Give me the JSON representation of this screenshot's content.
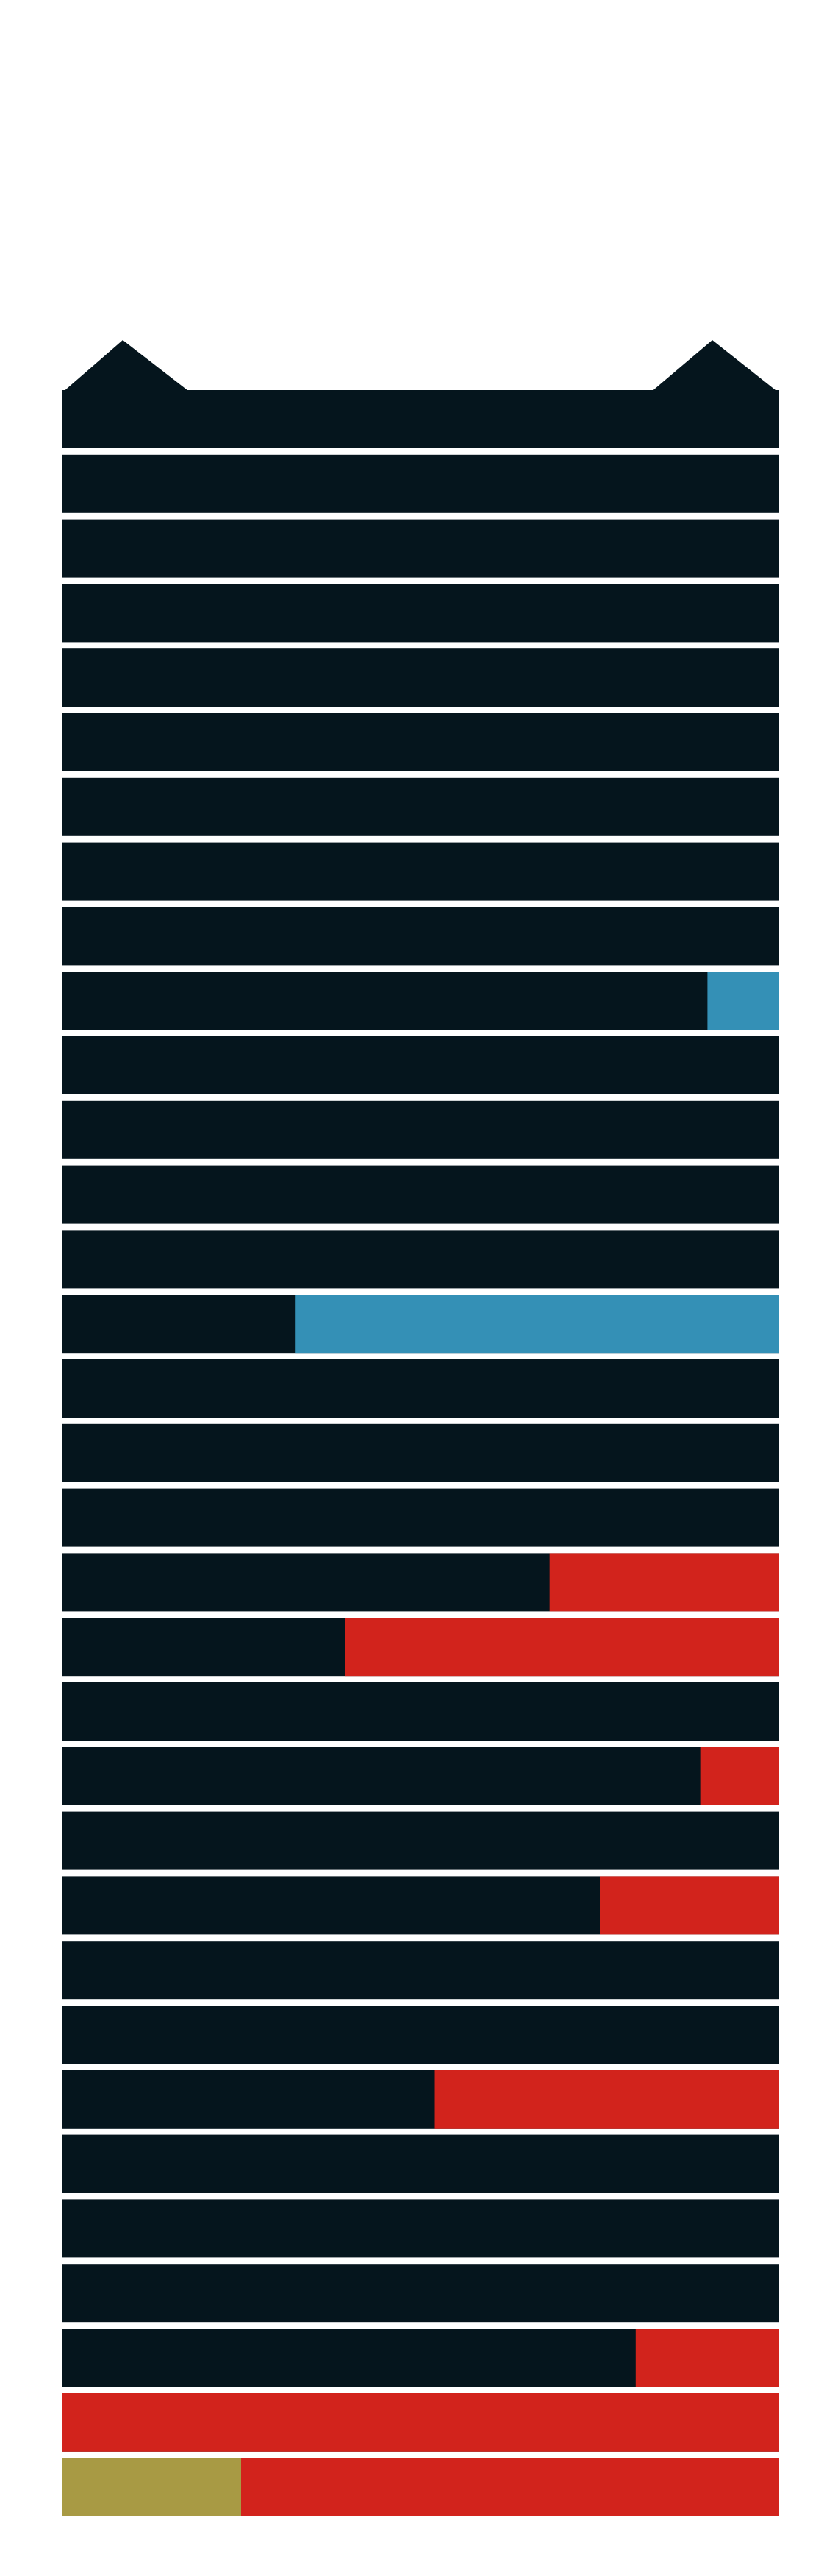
{
  "chart_data": {
    "type": "bar",
    "orientation": "horizontal",
    "stacked": true,
    "title": "",
    "xlabel": "",
    "ylabel": "",
    "xlim": [
      0,
      1
    ],
    "grid": false,
    "legend": "none",
    "row_count": 33,
    "base_color": "#05151d",
    "series": [
      {
        "color": "#3490b6",
        "values": [
          0,
          0,
          0,
          0,
          0,
          0,
          0,
          0,
          0,
          0.1,
          0,
          0,
          0,
          0,
          0.675,
          0,
          0,
          0,
          0,
          0,
          0,
          0,
          0,
          0,
          0,
          0,
          0,
          0,
          0,
          0,
          0,
          0,
          0
        ]
      },
      {
        "color": "#d2231c",
        "values": [
          0,
          0,
          0,
          0,
          0,
          0,
          0,
          0,
          0,
          0,
          0,
          0,
          0,
          0,
          0,
          0,
          0,
          0,
          0.32,
          0.605,
          0,
          0.11,
          0,
          0.25,
          0,
          0,
          0.48,
          0,
          0,
          0,
          0.2,
          1.0,
          0.75
        ]
      },
      {
        "color": "#a89a44",
        "values": [
          0,
          0,
          0,
          0,
          0,
          0,
          0,
          0,
          0,
          0,
          0,
          0,
          0,
          0,
          0,
          0,
          0,
          0,
          0,
          0,
          0,
          0,
          0,
          0,
          0,
          0,
          0,
          0,
          0,
          0,
          0,
          0,
          0.25
        ]
      }
    ]
  }
}
